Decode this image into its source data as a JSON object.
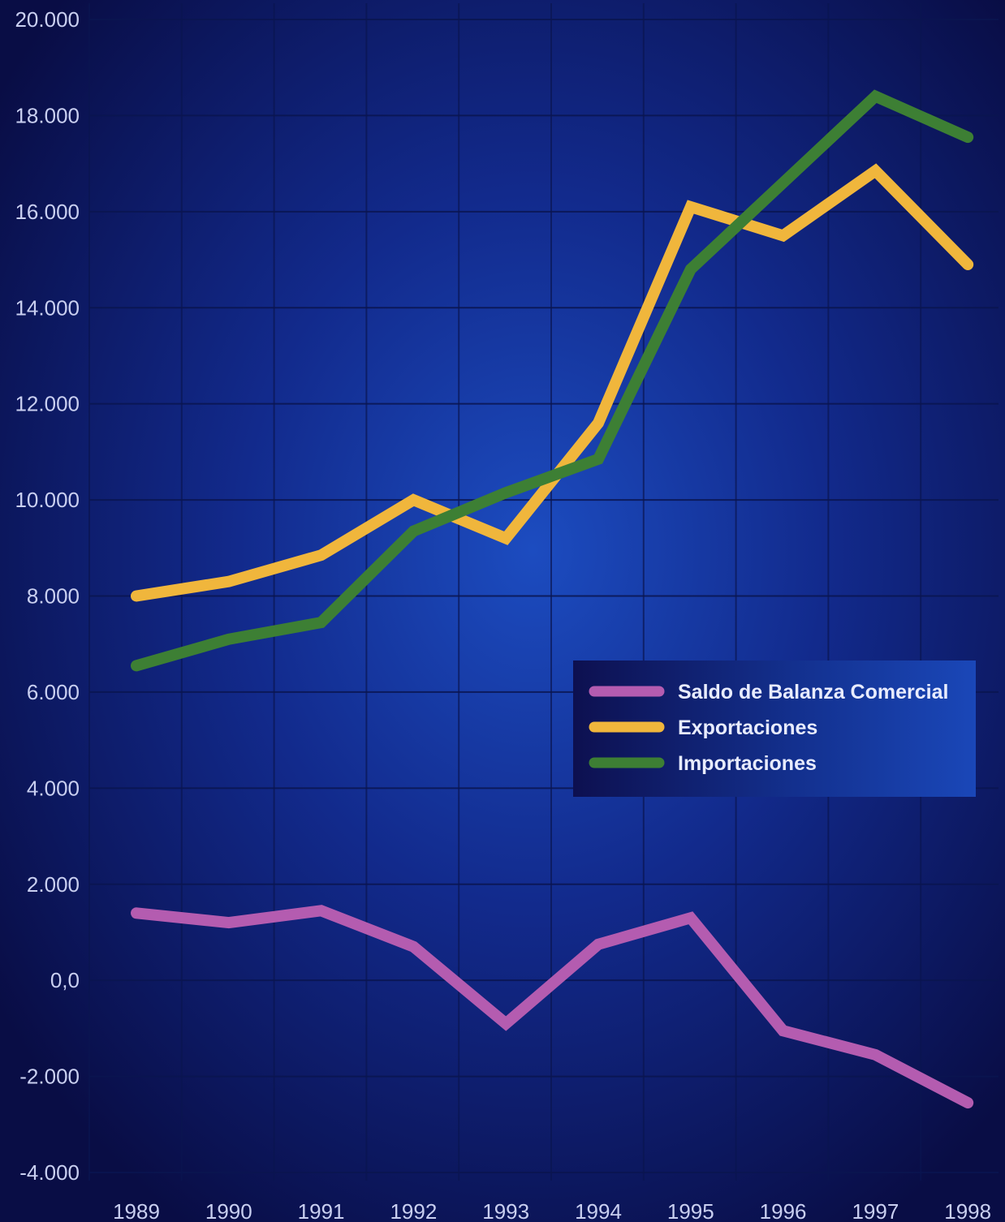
{
  "chart_data": {
    "type": "line",
    "title": "",
    "xlabel": "",
    "ylabel": "",
    "categories": [
      "1989",
      "1990",
      "1991",
      "1992",
      "1993",
      "1994",
      "1995",
      "1996",
      "1997",
      "1998"
    ],
    "ylim": [
      -4000,
      20000
    ],
    "y_ticks": [
      -4000,
      -2000,
      0,
      2000,
      4000,
      6000,
      8000,
      10000,
      12000,
      14000,
      16000,
      18000,
      20000
    ],
    "y_tick_labels": [
      "-4.000",
      "-2.000",
      "0,0",
      "2.000",
      "4.000",
      "6.000",
      "8.000",
      "10.000",
      "12.000",
      "14.000",
      "16.000",
      "18.000",
      "20.000"
    ],
    "grid": true,
    "legend_position": "center-right",
    "series": [
      {
        "name": "Saldo de Balanza Comercial",
        "color": "#b45cb0",
        "values": [
          1400,
          1200,
          1450,
          700,
          -900,
          750,
          1300,
          -1050,
          -1550,
          -2550
        ]
      },
      {
        "name": "Exportaciones",
        "color": "#f0b63c",
        "values": [
          8000,
          8300,
          8850,
          10000,
          9200,
          11600,
          16100,
          15500,
          16850,
          14900
        ]
      },
      {
        "name": "Importaciones",
        "color": "#3d7f34",
        "values": [
          6550,
          7100,
          7450,
          9350,
          10150,
          10850,
          14800,
          16600,
          18400,
          17550
        ]
      }
    ]
  }
}
